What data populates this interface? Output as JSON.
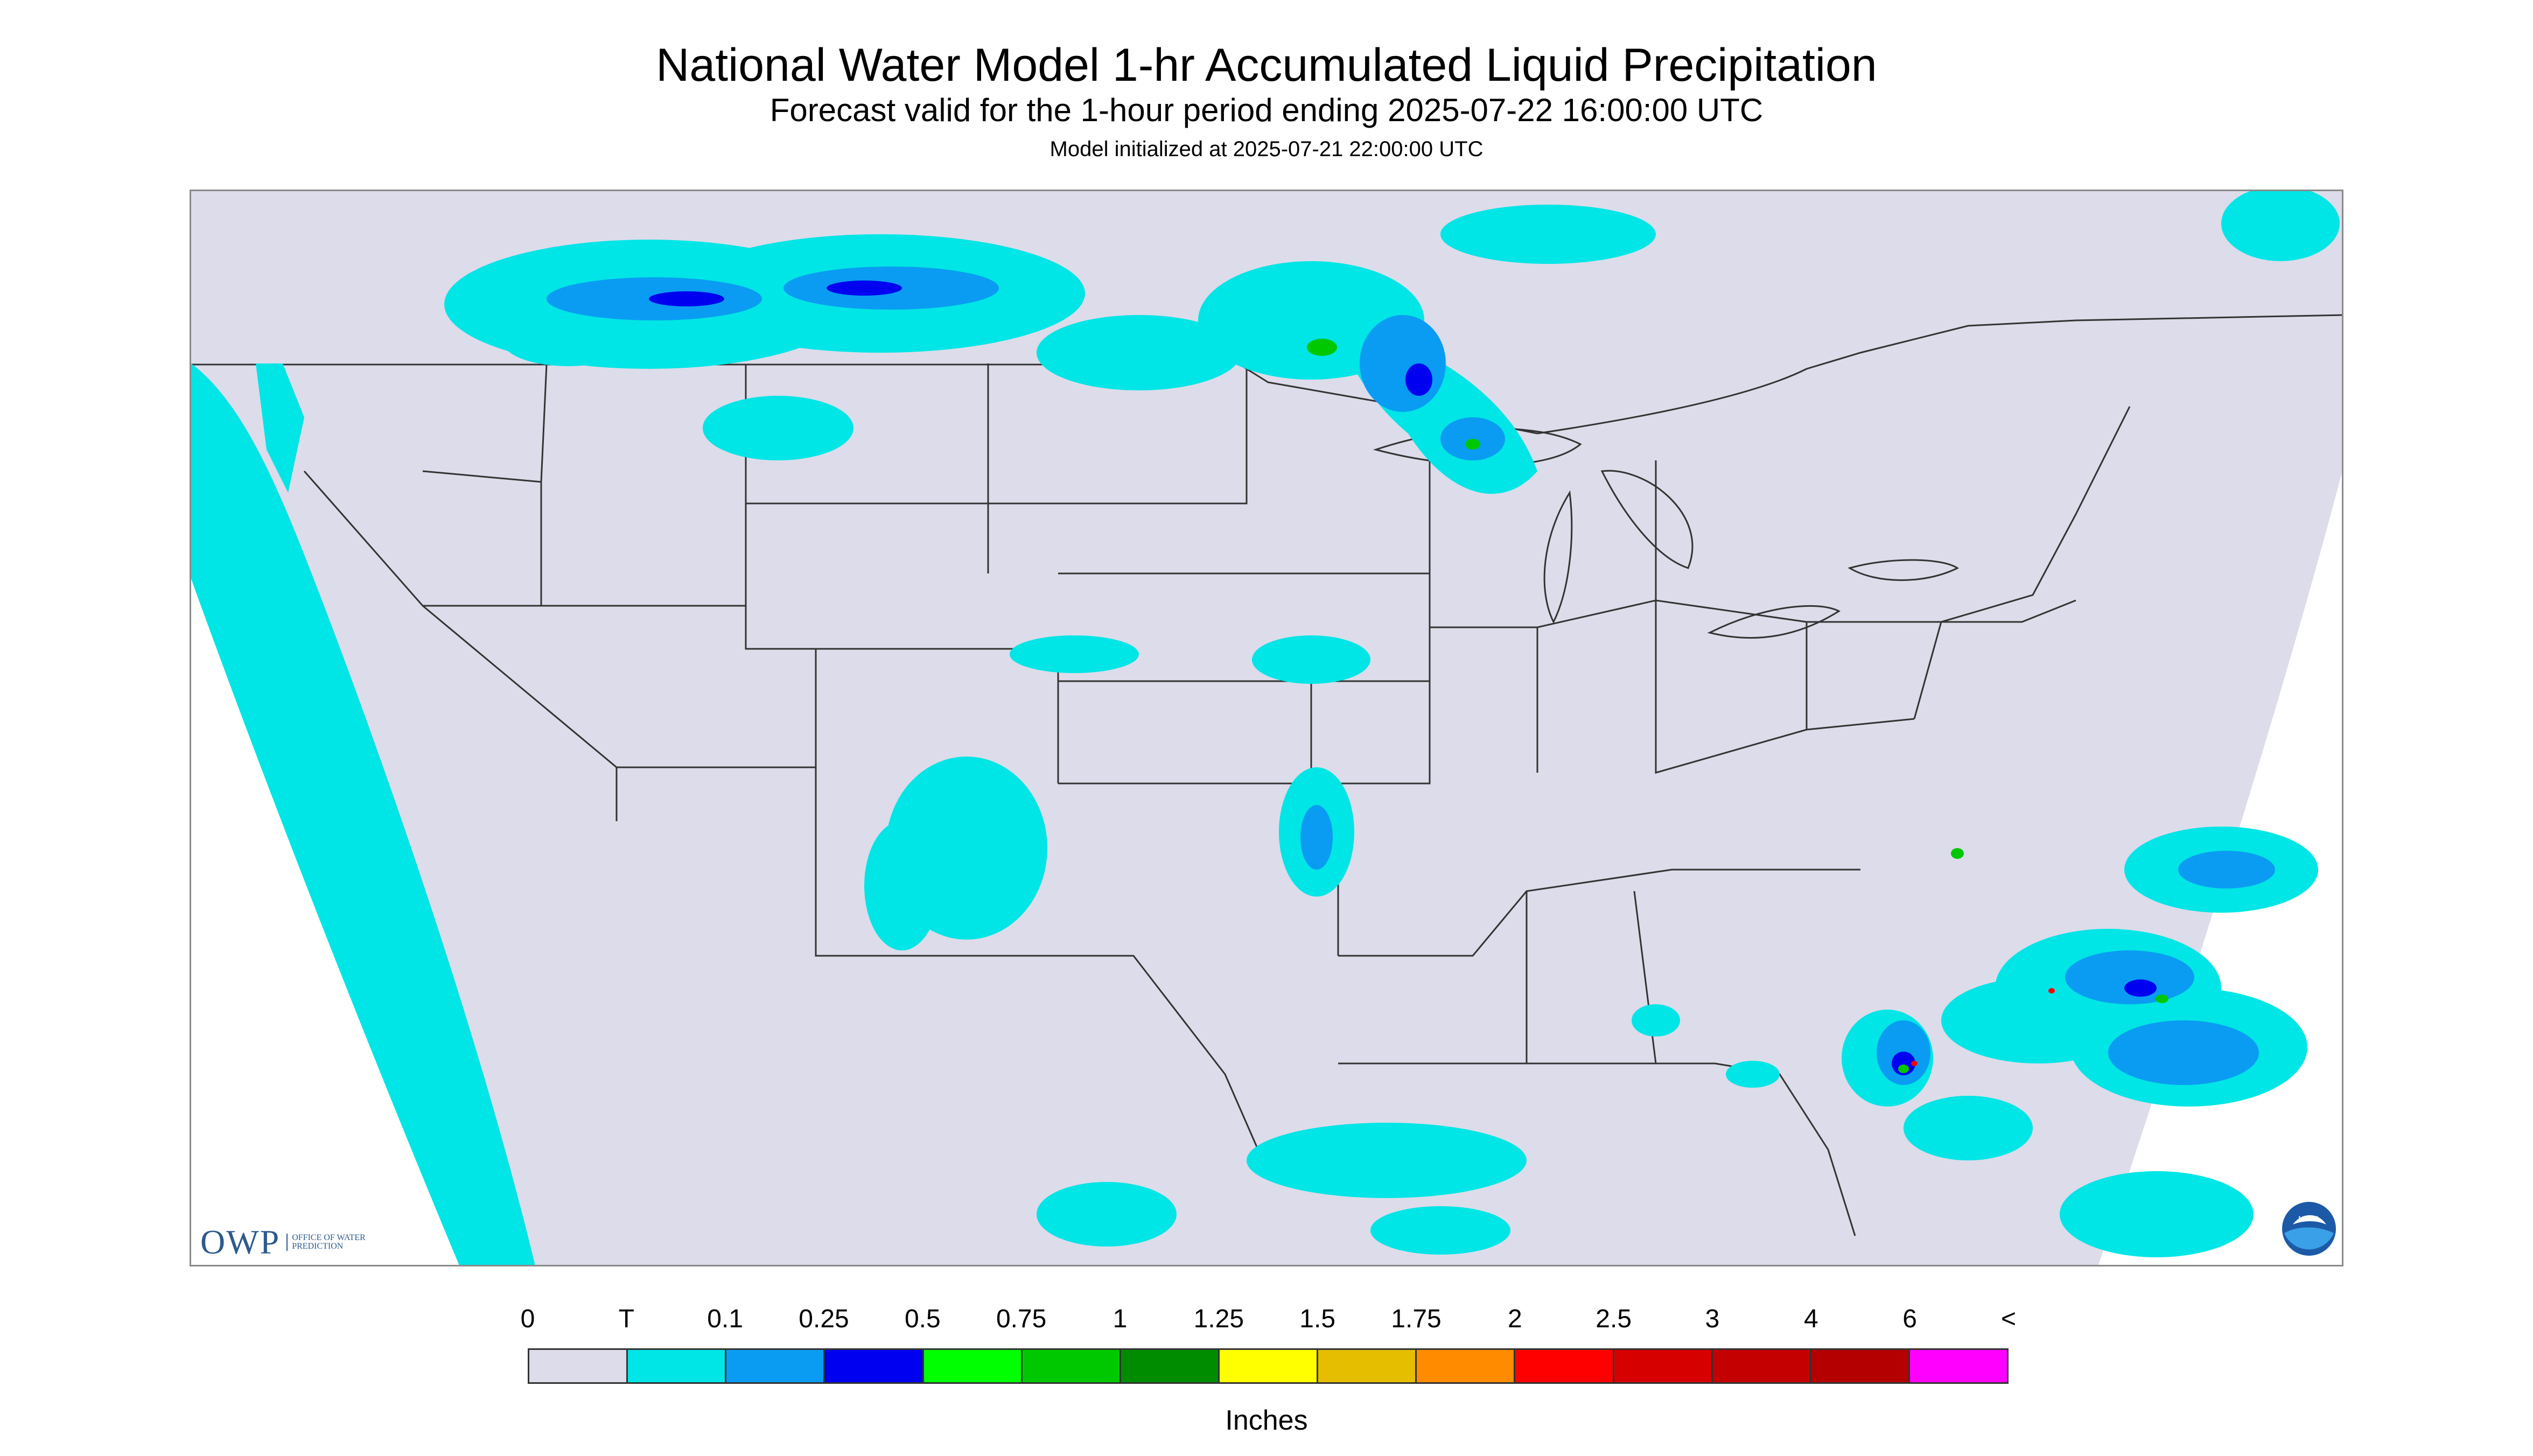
{
  "header": {
    "title": "National Water Model 1-hr Accumulated Liquid Precipitation",
    "subtitle": "Forecast valid for the 1-hour period ending 2025-07-22 16:00:00 UTC",
    "init_line": "Model initialized at 2025-07-21 22:00:00 UTC"
  },
  "map": {
    "region": "Continental United States",
    "colors": {
      "background": "#dcdcea",
      "outside_domain": "#ffffff",
      "borders": "#333333",
      "trace": "#00e5e5",
      "light": "#0a9cf2",
      "moderate": "#0000f0",
      "heavy": "#00c800"
    },
    "notable_areas": [
      "Pacific Ocean off West Coast",
      "Montana / Northern Plains",
      "Minnesota / Lake Superior",
      "Nebraska / Iowa",
      "Arizona / New Mexico",
      "Florida Gulf Coast",
      "Carolina Atlantic Coast",
      "Gulf of Mexico"
    ]
  },
  "logos": {
    "owp": {
      "text": "OWP",
      "sub": "OFFICE OF WATER PREDICTION"
    },
    "noaa": {
      "text": "NOAA"
    }
  },
  "legend": {
    "labels": [
      "0",
      "T",
      "0.1",
      "0.25",
      "0.5",
      "0.75",
      "1",
      "1.25",
      "1.5",
      "1.75",
      "2",
      "2.5",
      "3",
      "4",
      "6",
      "<"
    ],
    "colors": [
      "#dcdcea",
      "#00e5e5",
      "#0a9cf2",
      "#0000f0",
      "#00ff00",
      "#00c800",
      "#008c00",
      "#ffff00",
      "#e5be00",
      "#ff8c00",
      "#ff0000",
      "#d70000",
      "#c40000",
      "#b40000",
      "#ff00ff",
      "#9955c9"
    ],
    "units": "Inches"
  }
}
